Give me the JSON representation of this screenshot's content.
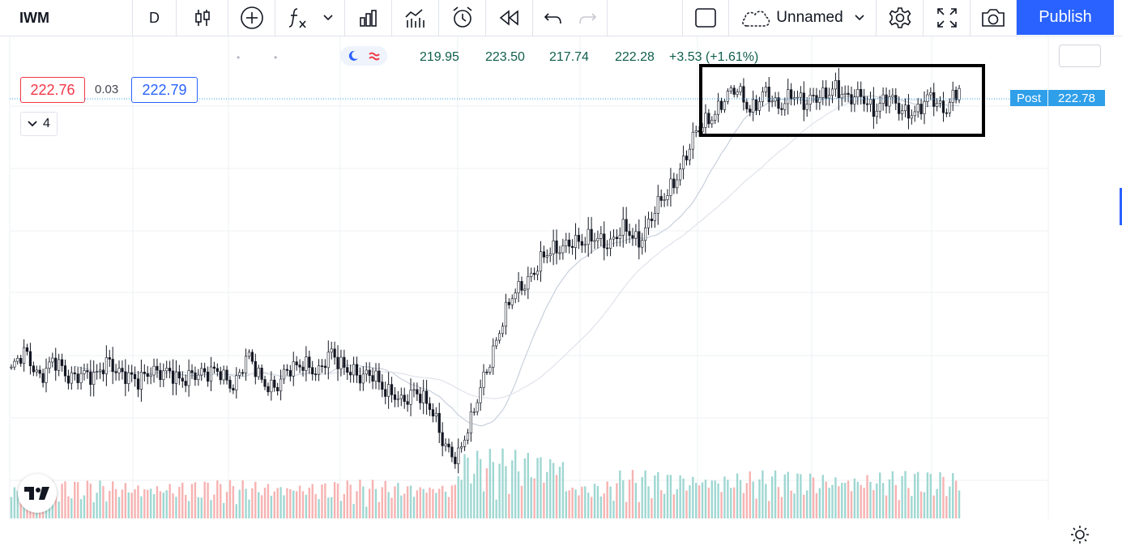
{
  "toolbar": {
    "symbol": "IWM",
    "interval": "D",
    "layout_name": "Unnamed",
    "publish_label": "Publish",
    "icons": [
      "candles-icon",
      "plus-circle-icon",
      "indicators-icon",
      "chevron-down-icon",
      "bar-templates-icon",
      "compare-icon",
      "alert-icon",
      "replay-icon",
      "undo-icon",
      "redo-icon",
      "square-layout-icon",
      "cloud-icon",
      "chevron-down-icon",
      "settings-icon",
      "fullscreen-icon",
      "camera-icon"
    ]
  },
  "legend": {
    "open": "219.95",
    "high": "223.50",
    "low": "217.74",
    "close": "222.28",
    "change": "+3.53 (+1.61%)"
  },
  "trade": {
    "sell": "222.76",
    "spread": "0.03",
    "buy": "222.79"
  },
  "collapse_count": "4",
  "price_axis": {
    "post_label": "Post",
    "post_price": "222.78"
  },
  "colors": {
    "up": "#26a69a",
    "down": "#ef5350",
    "candle": "#131722",
    "sell": "#f23645",
    "buy": "#2962ff",
    "post": "#2f9fea",
    "ohlc": "#0f5e4c"
  },
  "chart_data": {
    "type": "candlestick",
    "symbol": "IWM",
    "interval": "D",
    "close_path": [
      [
        0,
        150
      ],
      [
        2,
        154
      ],
      [
        4,
        149
      ],
      [
        6,
        152
      ],
      [
        8,
        148
      ],
      [
        10,
        150
      ],
      [
        12,
        147
      ],
      [
        14,
        153
      ],
      [
        16,
        149
      ],
      [
        18,
        146
      ],
      [
        20,
        151
      ],
      [
        22,
        149
      ],
      [
        24,
        147
      ],
      [
        26,
        150
      ],
      [
        28,
        148
      ],
      [
        30,
        150
      ],
      [
        32,
        146
      ],
      [
        34,
        153
      ],
      [
        36,
        148
      ],
      [
        38,
        145
      ],
      [
        40,
        150
      ],
      [
        42,
        153
      ],
      [
        44,
        148
      ],
      [
        46,
        155
      ],
      [
        48,
        151
      ],
      [
        50,
        147
      ],
      [
        52,
        150
      ],
      [
        54,
        144
      ],
      [
        56,
        141
      ],
      [
        58,
        146
      ],
      [
        60,
        140
      ],
      [
        62,
        131
      ],
      [
        64,
        128
      ],
      [
        66,
        136
      ],
      [
        68,
        150
      ],
      [
        70,
        160
      ],
      [
        72,
        169
      ],
      [
        74,
        174
      ],
      [
        76,
        178
      ],
      [
        78,
        181
      ],
      [
        80,
        184
      ],
      [
        82,
        182
      ],
      [
        84,
        185
      ],
      [
        86,
        183
      ],
      [
        88,
        186
      ],
      [
        90,
        184
      ],
      [
        92,
        190
      ],
      [
        94,
        195
      ],
      [
        96,
        203
      ],
      [
        98,
        210
      ],
      [
        100,
        215
      ],
      [
        102,
        220
      ],
      [
        104,
        222
      ],
      [
        106,
        218
      ],
      [
        108,
        222
      ],
      [
        110,
        217
      ],
      [
        112,
        223
      ],
      [
        114,
        218
      ],
      [
        116,
        221
      ],
      [
        118,
        224
      ],
      [
        120,
        219
      ],
      [
        122,
        222
      ],
      [
        124,
        217
      ],
      [
        126,
        220
      ],
      [
        128,
        218
      ],
      [
        130,
        216
      ],
      [
        132,
        221
      ],
      [
        134,
        218
      ],
      [
        136,
        222
      ]
    ],
    "volume_note": "heavy volume cluster during the sharp drop and rebound",
    "annotation": "rectangle around recent sideways range"
  }
}
